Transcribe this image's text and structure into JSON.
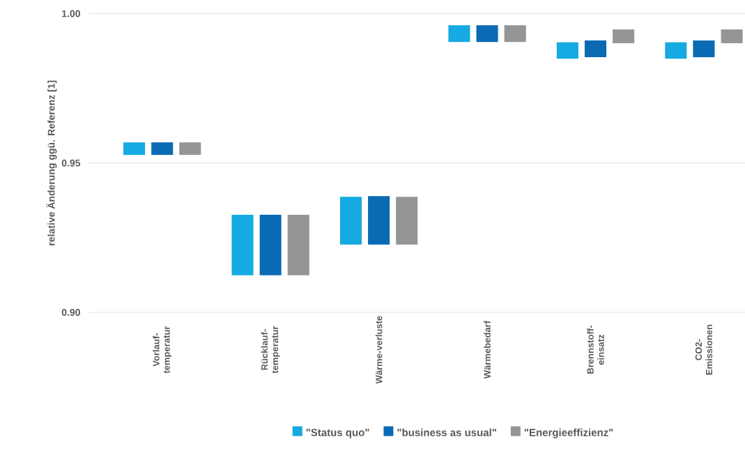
{
  "chart_data": {
    "type": "bar",
    "ylabel": "relative Änderung ggü. Referenz [1]",
    "categories": [
      "Vorlauf-temperatur",
      "Rücklauf-temperatur",
      "Wärme-verluste",
      "Wärmebedarf",
      "Brennstoff-einsatz",
      "CO2-Emissionen"
    ],
    "series": [
      {
        "name": "\"Status quo\"",
        "color": "#15aae1",
        "base": [
          0.9527,
          0.9124,
          0.9227,
          0.9905,
          0.9849,
          0.9849
        ],
        "values": [
          0.0042,
          0.0203,
          0.016,
          0.0056,
          0.0055,
          0.0055
        ]
      },
      {
        "name": "\"business as usual\"",
        "color": "#0b6ab4",
        "base": [
          0.9527,
          0.9124,
          0.9227,
          0.9905,
          0.9854,
          0.9854
        ],
        "values": [
          0.0042,
          0.0203,
          0.0162,
          0.0056,
          0.0056,
          0.0056
        ]
      },
      {
        "name": "\"Energieeffizienz\"",
        "color": "#959595",
        "base": [
          0.9527,
          0.9124,
          0.9227,
          0.9905,
          0.9901,
          0.9901
        ],
        "values": [
          0.0042,
          0.0203,
          0.016,
          0.0056,
          0.0046,
          0.0046
        ]
      }
    ],
    "ylim": [
      0.9,
      1.0
    ],
    "yticks": [
      {
        "value": 0.9,
        "label": "0.90"
      },
      {
        "value": 0.95,
        "label": "0.95"
      },
      {
        "value": 1.0,
        "label": "1.00"
      }
    ],
    "grid": "y",
    "legend": "bottom"
  }
}
